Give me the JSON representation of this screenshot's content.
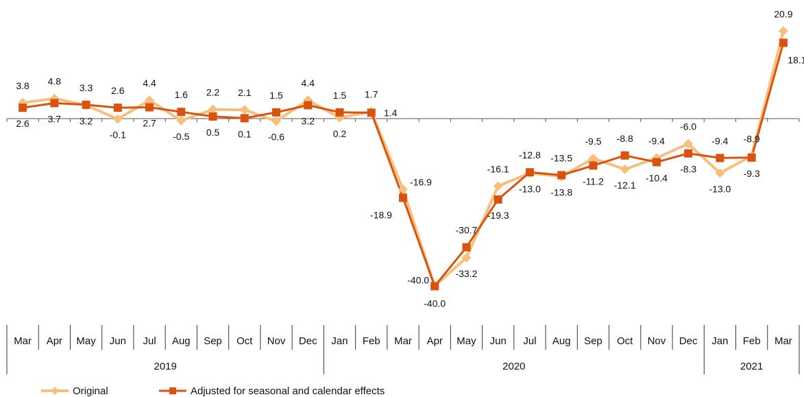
{
  "chart_data": {
    "type": "line",
    "title": "",
    "xlabel": "",
    "ylabel": "",
    "ylim": [
      -47,
      25
    ],
    "grid": false,
    "legend_position": "bottom-left",
    "categories": [
      "Mar",
      "Apr",
      "May",
      "Jun",
      "Jul",
      "Aug",
      "Sep",
      "Oct",
      "Nov",
      "Dec",
      "Jan",
      "Feb",
      "Mar",
      "Apr",
      "May",
      "Jun",
      "Jul",
      "Aug",
      "Sep",
      "Oct",
      "Nov",
      "Dec",
      "Jan",
      "Feb",
      "Mar"
    ],
    "year_groups": [
      {
        "label": "2019",
        "start": 0,
        "end": 9
      },
      {
        "label": "2020",
        "start": 10,
        "end": 21
      },
      {
        "label": "2021",
        "start": 22,
        "end": 24
      }
    ],
    "series": [
      {
        "name": "Original",
        "color": "#F5C07E",
        "marker": "diamond",
        "values": [
          3.8,
          4.8,
          3.2,
          -0.1,
          4.4,
          -0.5,
          2.2,
          2.1,
          -0.6,
          4.4,
          0.2,
          1.7,
          -16.9,
          -40.0,
          -33.2,
          -16.1,
          -13.0,
          -13.8,
          -9.5,
          -12.1,
          -9.4,
          -6.0,
          -13.0,
          -8.9,
          20.9
        ]
      },
      {
        "name": "Adjusted for seasonal and calendar effects",
        "color": "#D9530F",
        "marker": "square",
        "values": [
          2.6,
          3.7,
          3.3,
          2.6,
          2.7,
          1.6,
          0.5,
          0.1,
          1.5,
          3.2,
          1.5,
          1.4,
          -18.9,
          -40.0,
          -30.7,
          -19.3,
          -12.8,
          -13.5,
          -11.2,
          -8.8,
          -10.4,
          -8.3,
          -9.4,
          -9.3,
          18.1
        ]
      }
    ]
  }
}
